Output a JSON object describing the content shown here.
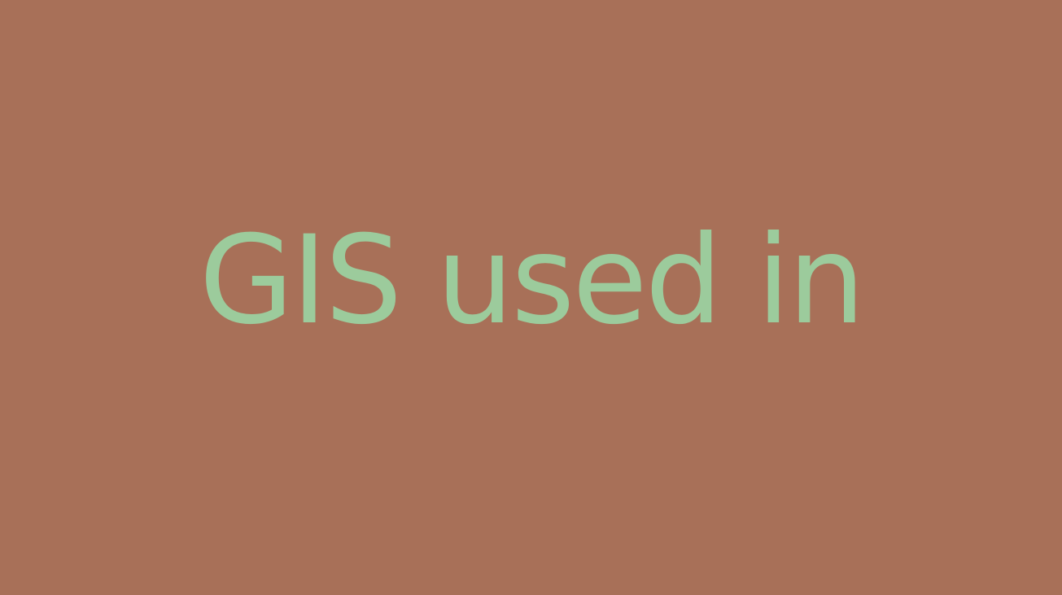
{
  "slide": {
    "title": "GIS used in",
    "colors": {
      "background": "#a87058",
      "title_text": "#9ccb9c"
    }
  }
}
